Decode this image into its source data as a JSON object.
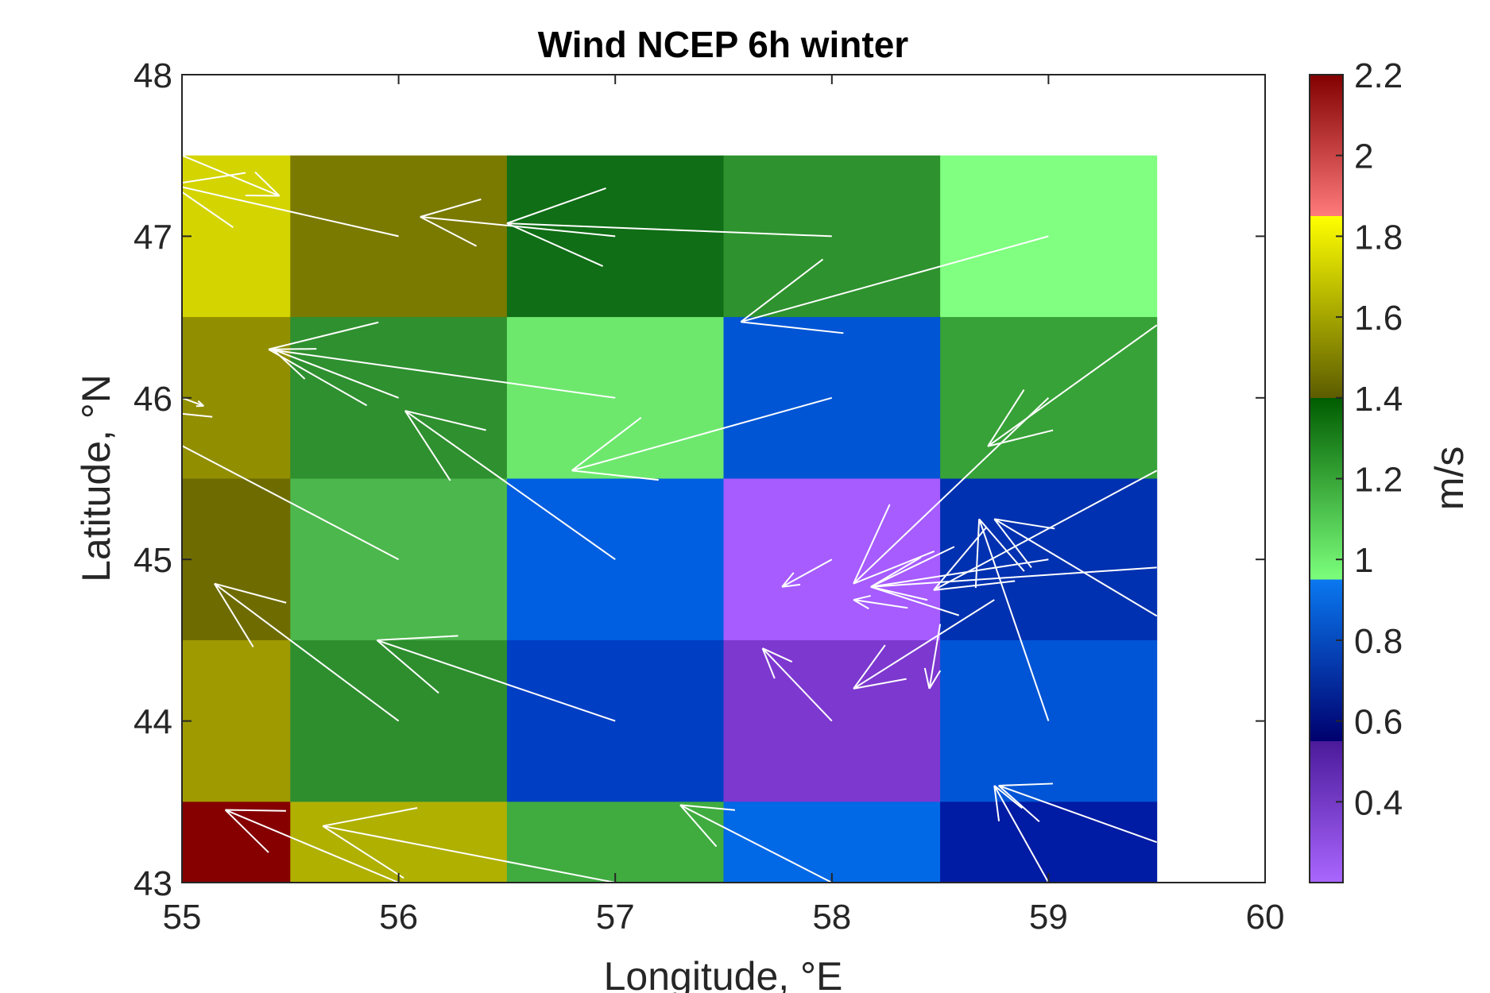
{
  "chart_data": {
    "type": "heatmap",
    "title": "Wind NCEP 6h winter",
    "xlabel": "Longitude, °E",
    "ylabel": "Latitude, °N",
    "xlim": [
      55,
      60
    ],
    "ylim": [
      43,
      48
    ],
    "xticks": [
      "55",
      "56",
      "57",
      "58",
      "59",
      "60"
    ],
    "yticks": [
      "43",
      "44",
      "45",
      "46",
      "47",
      "48"
    ],
    "colorbar": {
      "label": "m/s",
      "range": [
        0.2,
        2.2
      ],
      "ticks": [
        "0.4",
        "0.6",
        "0.8",
        "1",
        "1.2",
        "1.4",
        "1.6",
        "1.8",
        "2",
        "2.2"
      ],
      "segments": [
        {
          "from": 0.2,
          "to": 0.55,
          "color_low": "#aa66ff",
          "color_high": "#4b1a9a"
        },
        {
          "from": 0.55,
          "to": 0.95,
          "color_low": "#00006e",
          "color_high": "#0a78f0"
        },
        {
          "from": 0.95,
          "to": 1.4,
          "color_low": "#7cff7c",
          "color_high": "#005c00"
        },
        {
          "from": 1.4,
          "to": 1.85,
          "color_low": "#5c5c00",
          "color_high": "#ffff00"
        },
        {
          "from": 1.85,
          "to": 2.2,
          "color_low": "#ff7a7a",
          "color_high": "#820000"
        }
      ]
    },
    "grid": {
      "columns": [
        {
          "lon_from": 55.0,
          "lon_to": 55.5
        },
        {
          "lon_from": 55.5,
          "lon_to": 56.5
        },
        {
          "lon_from": 56.5,
          "lon_to": 57.5
        },
        {
          "lon_from": 57.5,
          "lon_to": 58.5
        },
        {
          "lon_from": 58.5,
          "lon_to": 59.5
        }
      ],
      "rows": [
        {
          "lat_from": 46.5,
          "lat_to": 47.5
        },
        {
          "lat_from": 45.5,
          "lat_to": 46.5
        },
        {
          "lat_from": 44.5,
          "lat_to": 45.5
        },
        {
          "lat_from": 43.5,
          "lat_to": 44.5
        },
        {
          "lat_from": 43.0,
          "lat_to": 43.5
        }
      ],
      "values": [
        [
          1.75,
          1.5,
          1.38,
          1.25,
          1.0
        ],
        [
          1.55,
          1.25,
          1.05,
          0.8,
          1.2
        ],
        [
          1.47,
          1.15,
          0.8,
          0.3,
          0.7
        ],
        [
          1.6,
          1.25,
          0.75,
          0.45,
          0.8
        ],
        [
          2.2,
          1.65,
          1.2,
          0.85,
          0.65
        ]
      ],
      "colors": [
        [
          "#d4d400",
          "#7a7a00",
          "#106e16",
          "#2e922e",
          "#80ff80"
        ],
        [
          "#918e00",
          "#2f902f",
          "#6de86d",
          "#0055d5",
          "#37a237"
        ],
        [
          "#6e6c00",
          "#4cb74c",
          "#005ee0",
          "#a65cff",
          "#0031b1"
        ],
        [
          "#9e9a00",
          "#2e8e2e",
          "#003ec4",
          "#7d38d0",
          "#0055d6"
        ],
        [
          "#860000",
          "#b0b000",
          "#40ac40",
          "#0168e6",
          "#001ba4"
        ]
      ]
    },
    "vectors": [
      {
        "lon": 55.0,
        "lat": 47.5,
        "dlon": 0.45,
        "dlat": -0.25
      },
      {
        "lon": 56.0,
        "lat": 47.0,
        "dlon": -1.05,
        "dlat": 0.32
      },
      {
        "lon": 57.0,
        "lat": 47.0,
        "dlon": -0.9,
        "dlat": 0.12
      },
      {
        "lon": 58.0,
        "lat": 47.0,
        "dlon": -1.5,
        "dlat": 0.08
      },
      {
        "lon": 59.0,
        "lat": 47.0,
        "dlon": -1.42,
        "dlat": -0.53
      },
      {
        "lon": 55.0,
        "lat": 46.0,
        "dlon": 0.1,
        "dlat": -0.05
      },
      {
        "lon": 56.0,
        "lat": 46.0,
        "dlon": -0.58,
        "dlat": 0.3
      },
      {
        "lon": 57.0,
        "lat": 46.0,
        "dlon": -1.6,
        "dlat": 0.3
      },
      {
        "lon": 58.0,
        "lat": 46.0,
        "dlon": -1.2,
        "dlat": -0.45
      },
      {
        "lon": 59.0,
        "lat": 46.0,
        "dlon": -0.9,
        "dlat": -1.15
      },
      {
        "lon": 55.0,
        "lat": 45.0,
        "dlon": -0.5,
        "dlat": 0.82
      },
      {
        "lon": 56.0,
        "lat": 45.0,
        "dlon": -1.35,
        "dlat": 0.95
      },
      {
        "lon": 57.0,
        "lat": 45.0,
        "dlon": -0.97,
        "dlat": 0.92
      },
      {
        "lon": 58.0,
        "lat": 45.0,
        "dlon": -0.23,
        "dlat": -0.17
      },
      {
        "lon": 59.0,
        "lat": 45.0,
        "dlon": -0.82,
        "dlat": -0.17
      },
      {
        "lon": 55.0,
        "lat": 44.0,
        "dlon": -1.2,
        "dlat": 0.75
      },
      {
        "lon": 56.0,
        "lat": 44.0,
        "dlon": -0.85,
        "dlat": 0.85
      },
      {
        "lon": 57.0,
        "lat": 44.0,
        "dlon": -1.1,
        "dlat": 0.5
      },
      {
        "lon": 58.0,
        "lat": 44.0,
        "dlon": -0.32,
        "dlat": 0.45
      },
      {
        "lon": 59.0,
        "lat": 44.0,
        "dlon": -0.32,
        "dlat": 1.25
      },
      {
        "lon": 56.0,
        "lat": 43.0,
        "dlon": -0.8,
        "dlat": 0.45
      },
      {
        "lon": 57.0,
        "lat": 43.0,
        "dlon": -1.35,
        "dlat": 0.35
      },
      {
        "lon": 58.0,
        "lat": 43.0,
        "dlon": -0.7,
        "dlat": 0.48
      },
      {
        "lon": 59.0,
        "lat": 43.0,
        "dlon": -0.25,
        "dlat": 0.6
      },
      {
        "lon": 59.5,
        "lat": 46.45,
        "dlon": -0.78,
        "dlat": -0.75
      },
      {
        "lon": 59.5,
        "lat": 45.55,
        "dlon": -1.03,
        "dlat": -0.74
      },
      {
        "lon": 59.5,
        "lat": 44.95,
        "dlon": -1.32,
        "dlat": -0.12
      },
      {
        "lon": 59.5,
        "lat": 44.65,
        "dlon": -0.75,
        "dlat": 0.6
      },
      {
        "lon": 59.5,
        "lat": 43.25,
        "dlon": -0.73,
        "dlat": 0.35
      },
      {
        "lon": 58.75,
        "lat": 44.75,
        "dlon": -0.65,
        "dlat": -0.55
      },
      {
        "lon": 58.35,
        "lat": 44.7,
        "dlon": -0.25,
        "dlat": 0.05
      },
      {
        "lon": 58.5,
        "lat": 44.6,
        "dlon": -0.05,
        "dlat": -0.4
      }
    ]
  }
}
